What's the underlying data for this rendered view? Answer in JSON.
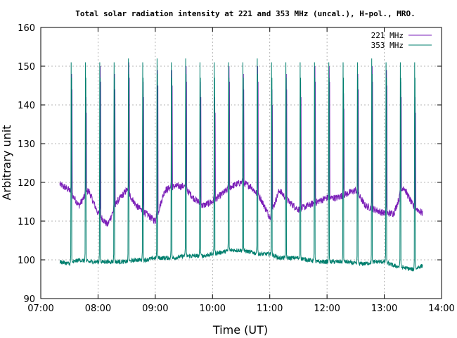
{
  "chart_data": {
    "type": "line",
    "title": "Total solar radiation intensity at 221 and 353 MHz (uncal.), H-pol., MRO.",
    "xlabel": "Time (UT)",
    "ylabel": "Arbitrary unit",
    "xlim": [
      "07:00",
      "14:00"
    ],
    "ylim": [
      90,
      160
    ],
    "x_ticks": [
      "07:00",
      "08:00",
      "09:00",
      "10:00",
      "11:00",
      "12:00",
      "13:00",
      "14:00"
    ],
    "y_ticks": [
      90,
      100,
      110,
      120,
      130,
      140,
      150,
      160
    ],
    "grid": true,
    "legend_position": "top-right",
    "pulse_times": [
      "07:32",
      "07:47",
      "08:02",
      "08:17",
      "08:32",
      "08:47",
      "09:02",
      "09:17",
      "09:32",
      "09:47",
      "10:02",
      "10:17",
      "10:32",
      "10:47",
      "11:02",
      "11:17",
      "11:32",
      "11:47",
      "12:02",
      "12:17",
      "12:32",
      "12:47",
      "13:02",
      "13:17",
      "13:32"
    ],
    "series": [
      {
        "name": "221 MHz",
        "color": "#7b1fb8",
        "baseline": {
          "x": [
            "07:20",
            "07:30",
            "07:40",
            "07:50",
            "08:00",
            "08:10",
            "08:20",
            "08:30",
            "08:40",
            "08:50",
            "09:00",
            "09:10",
            "09:20",
            "09:30",
            "09:40",
            "09:50",
            "10:00",
            "10:10",
            "10:20",
            "10:30",
            "10:40",
            "10:50",
            "11:00",
            "11:10",
            "11:20",
            "11:30",
            "11:40",
            "11:50",
            "12:00",
            "12:10",
            "12:20",
            "12:30",
            "12:40",
            "12:50",
            "13:00",
            "13:10",
            "13:20",
            "13:30",
            "13:40"
          ],
          "y": [
            119.5,
            118,
            114,
            118,
            112,
            109,
            115,
            118,
            114,
            112,
            110,
            118,
            119,
            119,
            116,
            114,
            115,
            117,
            119,
            120,
            119,
            116,
            111,
            118,
            115,
            113,
            114,
            115,
            116,
            116,
            117,
            118,
            114,
            113,
            112,
            112,
            119,
            114,
            112
          ]
        },
        "peaks": [
          148,
          142,
          150,
          148,
          151,
          146,
          149,
          149,
          150,
          146,
          142,
          150,
          148,
          150,
          144,
          148,
          146,
          150,
          150,
          143,
          148,
          150,
          149,
          146,
          142
        ]
      },
      {
        "name": "353 MHz",
        "color": "#007f6e",
        "baseline": {
          "x": [
            "07:20",
            "07:30",
            "07:40",
            "07:50",
            "08:00",
            "08:10",
            "08:20",
            "08:30",
            "08:40",
            "08:50",
            "09:00",
            "09:10",
            "09:20",
            "09:30",
            "09:40",
            "09:50",
            "10:00",
            "10:10",
            "10:20",
            "10:30",
            "10:40",
            "10:50",
            "11:00",
            "11:10",
            "11:20",
            "11:30",
            "11:40",
            "11:50",
            "12:00",
            "12:10",
            "12:20",
            "12:30",
            "12:40",
            "12:50",
            "13:00",
            "13:10",
            "13:20",
            "13:30",
            "13:40"
          ],
          "y": [
            99.5,
            99,
            100,
            99.5,
            99.5,
            99.5,
            99.5,
            99.5,
            100,
            100,
            100.5,
            100.5,
            100.5,
            101,
            101,
            101,
            101.5,
            102,
            102.5,
            102.5,
            102,
            101.5,
            101.5,
            100.5,
            100.5,
            100.5,
            100,
            99.5,
            99.5,
            99.5,
            99.5,
            99,
            99,
            99.5,
            99.5,
            98.5,
            98,
            97.5,
            98.5
          ]
        },
        "peaks": [
          151,
          151,
          151,
          151,
          152,
          151,
          152,
          151,
          152,
          151,
          151,
          151,
          151,
          152,
          151,
          151,
          151,
          151,
          151,
          151,
          151,
          152,
          151,
          151,
          151
        ]
      }
    ]
  }
}
